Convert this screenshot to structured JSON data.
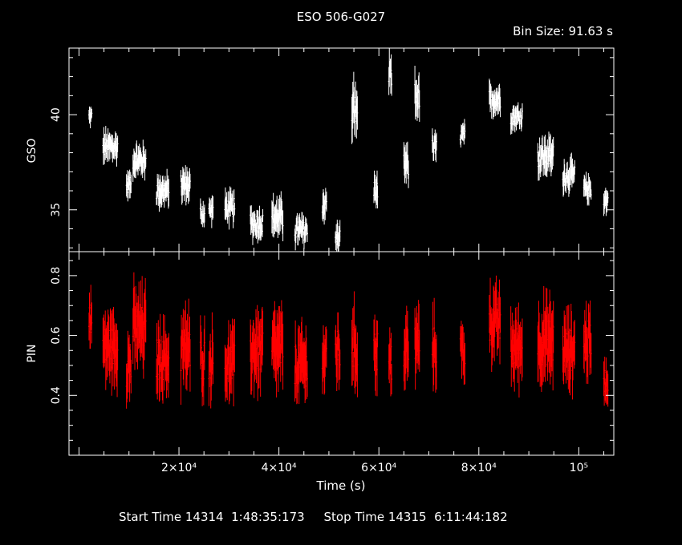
{
  "header": {
    "title": "ESO 506-G027",
    "bin_size": "Bin Size: 91.63 s"
  },
  "footer": {
    "start_label": "Start Time 14314  1:48:35:173",
    "stop_label": "Stop Time 14315  6:11:44:182"
  },
  "chart_data": {
    "type": "scatter",
    "xlabel": "Time (s)",
    "xlim": [
      -2000,
      107000
    ],
    "xticks": [
      {
        "value": 20000,
        "label": "2×10⁴"
      },
      {
        "value": 40000,
        "label": "4×10⁴"
      },
      {
        "value": 60000,
        "label": "6×10⁴"
      },
      {
        "value": 80000,
        "label": "8×10⁴"
      },
      {
        "value": 100000,
        "label": "10⁵"
      }
    ],
    "panels": [
      {
        "name": "GSO",
        "ylabel": "GSO",
        "color": "#ffffff",
        "ylim": [
          32.8,
          43.5
        ],
        "yticks": [
          {
            "value": 35,
            "label": "35"
          },
          {
            "value": 40,
            "label": "40"
          }
        ],
        "segments": [
          {
            "t0": 2000,
            "t1": 2600,
            "mean": 39.9,
            "spread": 0.3
          },
          {
            "t0": 4800,
            "t1": 7800,
            "mean": 38.3,
            "spread": 0.5
          },
          {
            "t0": 9500,
            "t1": 10500,
            "mean": 36.3,
            "spread": 0.4
          },
          {
            "t0": 10800,
            "t1": 13400,
            "mean": 37.6,
            "spread": 0.5
          },
          {
            "t0": 15500,
            "t1": 18000,
            "mean": 36.0,
            "spread": 0.5
          },
          {
            "t0": 20400,
            "t1": 22300,
            "mean": 36.3,
            "spread": 0.5
          },
          {
            "t0": 24300,
            "t1": 25200,
            "mean": 34.8,
            "spread": 0.4
          },
          {
            "t0": 26000,
            "t1": 26900,
            "mean": 35.0,
            "spread": 0.4
          },
          {
            "t0": 29200,
            "t1": 31200,
            "mean": 35.1,
            "spread": 0.5
          },
          {
            "t0": 34300,
            "t1": 36800,
            "mean": 34.3,
            "spread": 0.5
          },
          {
            "t0": 38600,
            "t1": 40800,
            "mean": 34.6,
            "spread": 0.6
          },
          {
            "t0": 43200,
            "t1": 45700,
            "mean": 33.9,
            "spread": 0.5
          },
          {
            "t0": 48700,
            "t1": 49600,
            "mean": 35.3,
            "spread": 0.5
          },
          {
            "t0": 51300,
            "t1": 52300,
            "mean": 33.5,
            "spread": 0.5
          },
          {
            "t0": 54600,
            "t1": 55700,
            "mean": 40.2,
            "spread": 0.9
          },
          {
            "t0": 59000,
            "t1": 59800,
            "mean": 36.0,
            "spread": 0.5
          },
          {
            "t0": 62000,
            "t1": 62600,
            "mean": 41.8,
            "spread": 0.7
          },
          {
            "t0": 65000,
            "t1": 66000,
            "mean": 37.3,
            "spread": 0.6
          },
          {
            "t0": 67200,
            "t1": 68200,
            "mean": 41.0,
            "spread": 0.7
          },
          {
            "t0": 70700,
            "t1": 71600,
            "mean": 38.2,
            "spread": 0.5
          },
          {
            "t0": 76300,
            "t1": 77300,
            "mean": 38.9,
            "spread": 0.4
          },
          {
            "t0": 82100,
            "t1": 84300,
            "mean": 40.8,
            "spread": 0.5
          },
          {
            "t0": 86400,
            "t1": 88700,
            "mean": 39.9,
            "spread": 0.4
          },
          {
            "t0": 91800,
            "t1": 95000,
            "mean": 37.8,
            "spread": 0.6
          },
          {
            "t0": 96800,
            "t1": 99200,
            "mean": 36.8,
            "spread": 0.5
          },
          {
            "t0": 101000,
            "t1": 102500,
            "mean": 36.1,
            "spread": 0.4
          },
          {
            "t0": 105000,
            "t1": 105900,
            "mean": 35.5,
            "spread": 0.4
          }
        ]
      },
      {
        "name": "PIN",
        "ylabel": "PIN",
        "color": "#ff0000",
        "ylim": [
          0.2,
          0.88
        ],
        "yticks": [
          {
            "value": 0.4,
            "label": "0.4"
          },
          {
            "value": 0.6,
            "label": "0.6"
          },
          {
            "value": 0.8,
            "label": "0.8"
          }
        ],
        "segments": [
          {
            "t0": 2000,
            "t1": 2600,
            "mean": 0.66,
            "spread": 0.05
          },
          {
            "t0": 4800,
            "t1": 7800,
            "mean": 0.56,
            "spread": 0.07
          },
          {
            "t0": 9500,
            "t1": 10500,
            "mean": 0.5,
            "spread": 0.07
          },
          {
            "t0": 10800,
            "t1": 13400,
            "mean": 0.62,
            "spread": 0.08
          },
          {
            "t0": 15500,
            "t1": 18000,
            "mean": 0.52,
            "spread": 0.07
          },
          {
            "t0": 20400,
            "t1": 22300,
            "mean": 0.55,
            "spread": 0.08
          },
          {
            "t0": 24300,
            "t1": 25200,
            "mean": 0.52,
            "spread": 0.07
          },
          {
            "t0": 26000,
            "t1": 26900,
            "mean": 0.52,
            "spread": 0.07
          },
          {
            "t0": 29200,
            "t1": 31200,
            "mean": 0.5,
            "spread": 0.07
          },
          {
            "t0": 34300,
            "t1": 36800,
            "mean": 0.55,
            "spread": 0.08
          },
          {
            "t0": 38600,
            "t1": 40800,
            "mean": 0.55,
            "spread": 0.08
          },
          {
            "t0": 43200,
            "t1": 45700,
            "mean": 0.5,
            "spread": 0.07
          },
          {
            "t0": 48700,
            "t1": 49600,
            "mean": 0.52,
            "spread": 0.07
          },
          {
            "t0": 51300,
            "t1": 52300,
            "mean": 0.55,
            "spread": 0.07
          },
          {
            "t0": 54600,
            "t1": 55700,
            "mean": 0.56,
            "spread": 0.08
          },
          {
            "t0": 59000,
            "t1": 59800,
            "mean": 0.55,
            "spread": 0.07
          },
          {
            "t0": 62000,
            "t1": 62600,
            "mean": 0.5,
            "spread": 0.07
          },
          {
            "t0": 65000,
            "t1": 66000,
            "mean": 0.55,
            "spread": 0.07
          },
          {
            "t0": 67200,
            "t1": 68200,
            "mean": 0.57,
            "spread": 0.07
          },
          {
            "t0": 70700,
            "t1": 71600,
            "mean": 0.56,
            "spread": 0.07
          },
          {
            "t0": 76300,
            "t1": 77300,
            "mean": 0.55,
            "spread": 0.06
          },
          {
            "t0": 82100,
            "t1": 84300,
            "mean": 0.64,
            "spread": 0.07
          },
          {
            "t0": 86400,
            "t1": 88700,
            "mean": 0.56,
            "spread": 0.07
          },
          {
            "t0": 91800,
            "t1": 95000,
            "mean": 0.58,
            "spread": 0.08
          },
          {
            "t0": 96800,
            "t1": 99200,
            "mean": 0.55,
            "spread": 0.07
          },
          {
            "t0": 101000,
            "t1": 102500,
            "mean": 0.58,
            "spread": 0.07
          },
          {
            "t0": 105000,
            "t1": 105900,
            "mean": 0.45,
            "spread": 0.04
          }
        ]
      }
    ]
  }
}
